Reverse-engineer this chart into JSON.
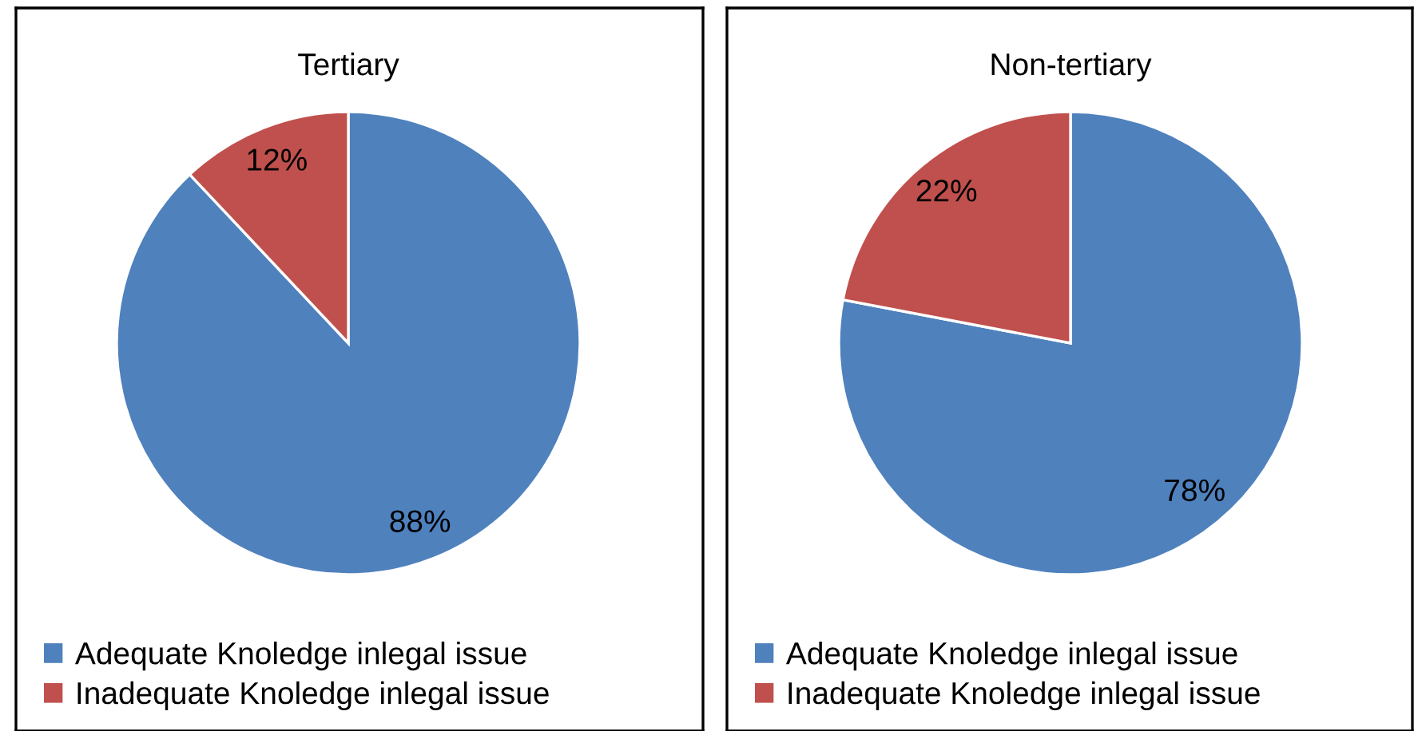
{
  "chart_data": [
    {
      "type": "pie",
      "title": "Tertiary",
      "categories": [
        "Adequate Knoledge inlegal issue",
        "Inadequate Knoledge inlegal issue"
      ],
      "values": [
        88,
        12
      ],
      "colors": [
        "#4f81bd",
        "#c0504d"
      ],
      "value_labels": [
        "88%",
        "12%"
      ],
      "legend": "bottom"
    },
    {
      "type": "pie",
      "title": "Non-tertiary",
      "categories": [
        "Adequate Knoledge inlegal issue",
        "Inadequate Knoledge inlegal issue"
      ],
      "values": [
        78,
        22
      ],
      "colors": [
        "#4f81bd",
        "#c0504d"
      ],
      "value_labels": [
        "78%",
        "22%"
      ],
      "legend": "bottom"
    }
  ]
}
